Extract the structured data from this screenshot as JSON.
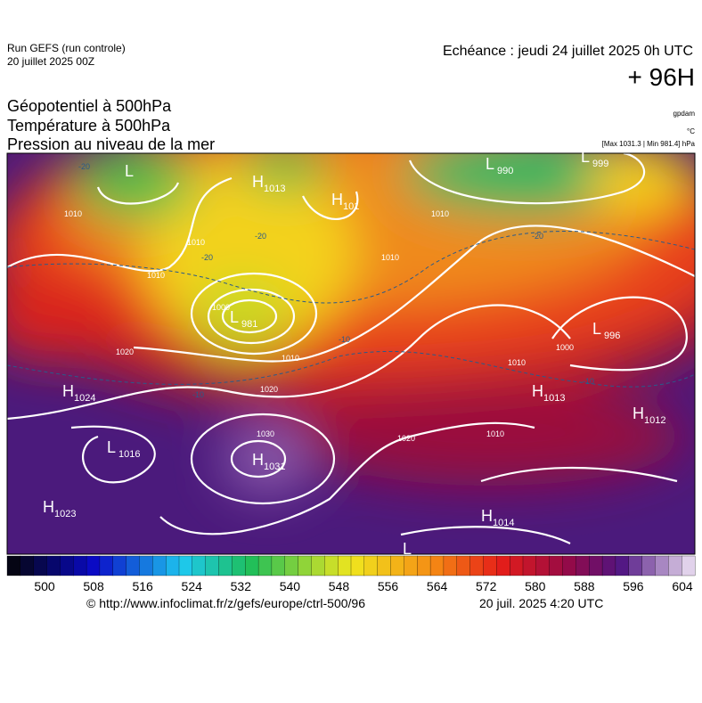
{
  "header": {
    "run": "Run GEFS (run controle)",
    "run_date": "20 juillet 2025 00Z",
    "valid": "Echéance : jeudi 24 juillet 2025 0h UTC",
    "lead": "+ 96H"
  },
  "titles": [
    "Géopotentiel à 500hPa",
    "Température à 500hPa",
    "Pression au niveau de la mer"
  ],
  "units": {
    "geopotential": "gpdam",
    "temperature": "°C",
    "pressure": "[Max 1031.3 | Min 981.4] hPa"
  },
  "centers": [
    {
      "letter": "L"
    },
    {
      "letter": "H",
      "value": "1013"
    },
    {
      "letter": "H",
      "value": "101"
    },
    {
      "letter": "L",
      "value": "990"
    },
    {
      "letter": "L",
      "value": "999"
    },
    {
      "letter": "L",
      "value": "981"
    },
    {
      "letter": "L",
      "value": "996"
    },
    {
      "letter": "H",
      "value": "1024"
    },
    {
      "letter": "H",
      "value": "1013"
    },
    {
      "letter": "H",
      "value": "1012"
    },
    {
      "letter": "L",
      "value": "1016"
    },
    {
      "letter": "H",
      "value": "1031"
    },
    {
      "letter": "H",
      "value": "1023"
    },
    {
      "letter": "H",
      "value": "1014"
    },
    {
      "letter": "L"
    }
  ],
  "isobar_labels": [
    "1010",
    "1010",
    "1010",
    "1010",
    "1000",
    "1010",
    "1020",
    "1020",
    "1030",
    "1020",
    "1010",
    "1010",
    "1000",
    "1010"
  ],
  "temperature_labels": [
    "-20",
    "-20",
    "-20",
    "-20",
    "-10",
    "-10",
    "-10"
  ],
  "colorbar_labels": [
    "500",
    "508",
    "516",
    "524",
    "532",
    "540",
    "548",
    "556",
    "564",
    "572",
    "580",
    "588",
    "596",
    "604"
  ],
  "footer": {
    "source": "© http://www.infoclimat.fr/z/gefs/europe/ctrl-500/96",
    "generated": "20 juil. 2025  4:20 UTC"
  }
}
